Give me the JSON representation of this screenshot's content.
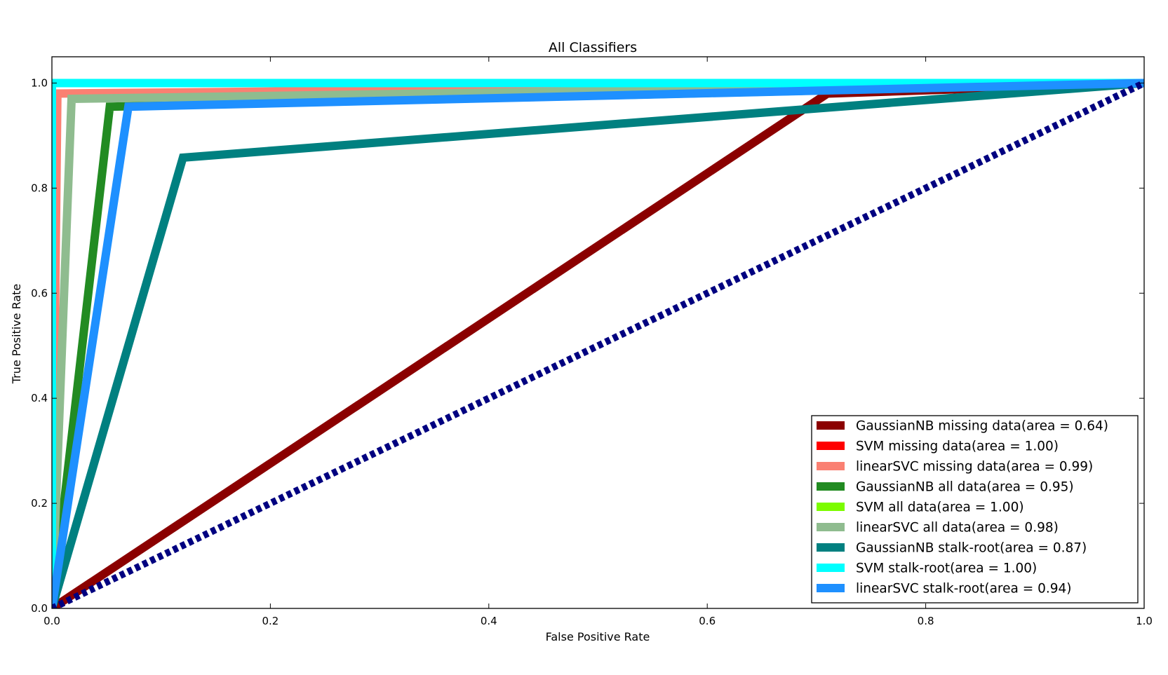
{
  "chart_data": {
    "type": "line",
    "title": "All Classifiers",
    "xlabel": "False Positive Rate",
    "ylabel": "True Positive Rate",
    "xlim": [
      0.0,
      1.0
    ],
    "ylim": [
      0.0,
      1.05
    ],
    "x_ticks": [
      "0.0",
      "0.2",
      "0.4",
      "0.6",
      "0.8",
      "1.0"
    ],
    "y_ticks": [
      "0.0",
      "0.2",
      "0.4",
      "0.6",
      "0.8",
      "1.0"
    ],
    "grid": false,
    "legend_position": "lower-right",
    "series": [
      {
        "name": "GaussianNB missing data(area = 0.64)",
        "color": "#8b0000",
        "x": [
          0,
          0.71,
          1
        ],
        "y": [
          0,
          0.98,
          1
        ]
      },
      {
        "name": "SVM missing data(area = 1.00)",
        "color": "#ff0000",
        "x": [
          0,
          0,
          1
        ],
        "y": [
          0,
          1,
          1
        ]
      },
      {
        "name": "linearSVC missing data(area = 0.99)",
        "color": "#fa8072",
        "x": [
          0,
          0.005,
          1
        ],
        "y": [
          0,
          0.98,
          1
        ]
      },
      {
        "name": "GaussianNB all data(area = 0.95)",
        "color": "#228b22",
        "x": [
          0,
          0.053,
          1
        ],
        "y": [
          0,
          0.955,
          1
        ]
      },
      {
        "name": "SVM all data(area = 1.00)",
        "color": "#7cfc00",
        "x": [
          0,
          0,
          1
        ],
        "y": [
          0,
          1,
          1
        ]
      },
      {
        "name": "linearSVC all data(area = 0.98)",
        "color": "#8fbc8f",
        "x": [
          0,
          0.018,
          1
        ],
        "y": [
          0,
          0.97,
          1
        ]
      },
      {
        "name": "GaussianNB stalk-root(area = 0.87)",
        "color": "#008080",
        "x": [
          0,
          0.12,
          1
        ],
        "y": [
          0,
          0.858,
          1
        ]
      },
      {
        "name": "SVM stalk-root(area = 1.00)",
        "color": "#00ffff",
        "x": [
          0,
          0,
          1
        ],
        "y": [
          0,
          1,
          1
        ]
      },
      {
        "name": "linearSVC stalk-root(area = 0.94)",
        "color": "#1e90ff",
        "x": [
          0,
          0.07,
          1
        ],
        "y": [
          0,
          0.955,
          1
        ]
      }
    ],
    "reference_line": {
      "color": "#000080",
      "style": "dotted",
      "x": [
        0,
        1
      ],
      "y": [
        0,
        1
      ]
    }
  }
}
